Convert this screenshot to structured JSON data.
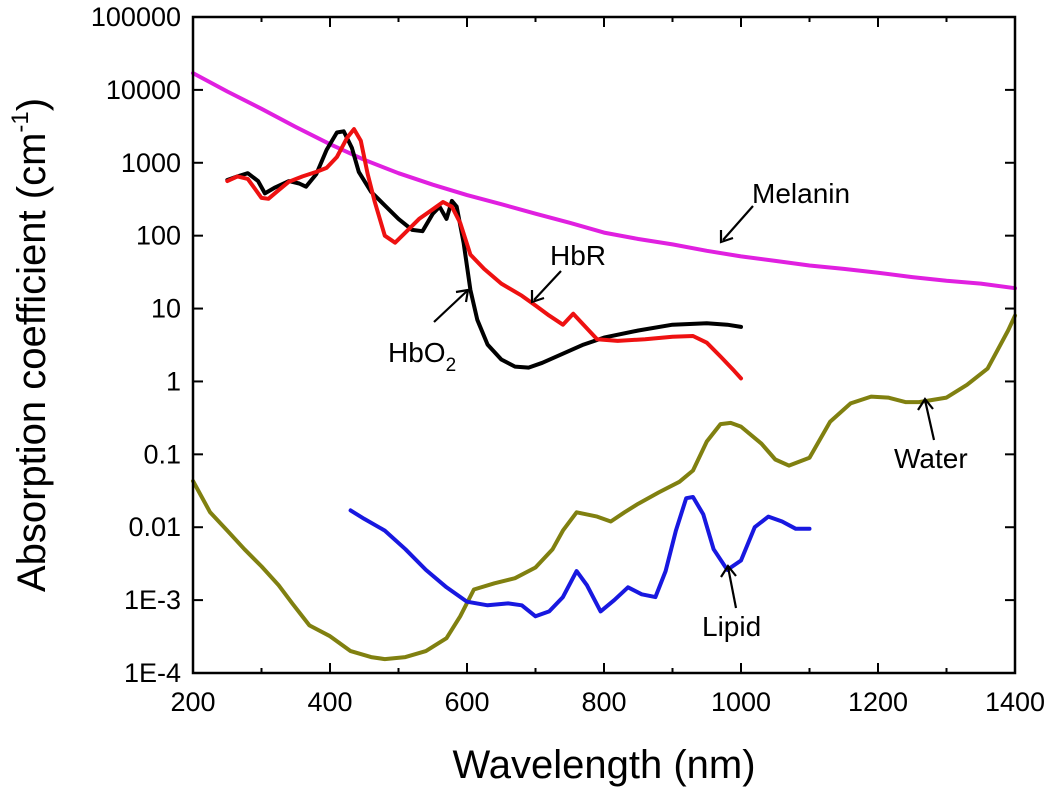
{
  "chart_data": {
    "type": "line",
    "xlabel": "Wavelength (nm)",
    "ylabel_main": "Absorption coefficient (cm",
    "ylabel_sup": "-1",
    "ylabel_close": ")",
    "xlim": [
      200,
      1400
    ],
    "ylim": [
      0.0001,
      100000
    ],
    "yscale": "log",
    "x_ticks": [
      200,
      400,
      600,
      800,
      1000,
      1200,
      1400
    ],
    "x_tick_labels": [
      "200",
      "400",
      "600",
      "800",
      "1000",
      "1200",
      "1400"
    ],
    "y_ticks": [
      0.0001,
      0.001,
      0.01,
      0.1,
      1,
      10,
      100,
      1000,
      10000,
      100000
    ],
    "y_tick_labels": [
      "1E-4",
      "1E-3",
      "0.01",
      "0.1",
      "1",
      "10",
      "100",
      "1000",
      "10000",
      "100000"
    ],
    "grid": false,
    "series": [
      {
        "key": "melanin",
        "color": "#e020e0",
        "points": [
          [
            200,
            17000
          ],
          [
            250,
            9500
          ],
          [
            300,
            5500
          ],
          [
            350,
            3100
          ],
          [
            400,
            1800
          ],
          [
            450,
            1100
          ],
          [
            500,
            720
          ],
          [
            550,
            500
          ],
          [
            600,
            360
          ],
          [
            650,
            270
          ],
          [
            700,
            200
          ],
          [
            750,
            150
          ],
          [
            800,
            110
          ],
          [
            850,
            90
          ],
          [
            900,
            76
          ],
          [
            950,
            62
          ],
          [
            1000,
            52
          ],
          [
            1050,
            45
          ],
          [
            1100,
            39
          ],
          [
            1150,
            35
          ],
          [
            1200,
            31
          ],
          [
            1250,
            27
          ],
          [
            1300,
            24
          ],
          [
            1350,
            22
          ],
          [
            1400,
            19
          ]
        ]
      },
      {
        "key": "hbo2",
        "color": "#000000",
        "points": [
          [
            250,
            580
          ],
          [
            265,
            650
          ],
          [
            280,
            720
          ],
          [
            295,
            560
          ],
          [
            305,
            380
          ],
          [
            320,
            460
          ],
          [
            340,
            560
          ],
          [
            355,
            520
          ],
          [
            365,
            470
          ],
          [
            380,
            700
          ],
          [
            395,
            1500
          ],
          [
            410,
            2600
          ],
          [
            420,
            2700
          ],
          [
            432,
            1600
          ],
          [
            442,
            750
          ],
          [
            460,
            400
          ],
          [
            480,
            260
          ],
          [
            500,
            170
          ],
          [
            520,
            120
          ],
          [
            535,
            115
          ],
          [
            550,
            200
          ],
          [
            560,
            250
          ],
          [
            570,
            170
          ],
          [
            578,
            300
          ],
          [
            585,
            250
          ],
          [
            595,
            80
          ],
          [
            605,
            18
          ],
          [
            615,
            7
          ],
          [
            630,
            3.2
          ],
          [
            650,
            2
          ],
          [
            670,
            1.6
          ],
          [
            690,
            1.55
          ],
          [
            710,
            1.8
          ],
          [
            740,
            2.4
          ],
          [
            770,
            3.2
          ],
          [
            800,
            4
          ],
          [
            850,
            5
          ],
          [
            900,
            6
          ],
          [
            950,
            6.3
          ],
          [
            980,
            6
          ],
          [
            1000,
            5.6
          ]
        ]
      },
      {
        "key": "hbr",
        "color": "#ee1111",
        "points": [
          [
            250,
            560
          ],
          [
            265,
            650
          ],
          [
            280,
            600
          ],
          [
            300,
            330
          ],
          [
            310,
            320
          ],
          [
            325,
            420
          ],
          [
            340,
            550
          ],
          [
            360,
            650
          ],
          [
            380,
            750
          ],
          [
            395,
            850
          ],
          [
            410,
            1200
          ],
          [
            425,
            2200
          ],
          [
            435,
            2900
          ],
          [
            445,
            2000
          ],
          [
            455,
            700
          ],
          [
            465,
            300
          ],
          [
            480,
            100
          ],
          [
            495,
            80
          ],
          [
            510,
            110
          ],
          [
            530,
            170
          ],
          [
            550,
            230
          ],
          [
            565,
            290
          ],
          [
            578,
            250
          ],
          [
            590,
            150
          ],
          [
            605,
            55
          ],
          [
            625,
            35
          ],
          [
            650,
            22
          ],
          [
            680,
            15
          ],
          [
            700,
            11
          ],
          [
            720,
            8
          ],
          [
            740,
            6
          ],
          [
            755,
            8.5
          ],
          [
            770,
            6
          ],
          [
            790,
            3.8
          ],
          [
            820,
            3.6
          ],
          [
            860,
            3.8
          ],
          [
            900,
            4.1
          ],
          [
            930,
            4.2
          ],
          [
            950,
            3.4
          ],
          [
            970,
            2.2
          ],
          [
            990,
            1.4
          ],
          [
            1000,
            1.1
          ]
        ]
      },
      {
        "key": "water",
        "color": "#808010",
        "points": [
          [
            200,
            0.043
          ],
          [
            225,
            0.016
          ],
          [
            250,
            0.009
          ],
          [
            275,
            0.005
          ],
          [
            300,
            0.0029
          ],
          [
            325,
            0.0016
          ],
          [
            345,
            0.0009
          ],
          [
            370,
            0.00045
          ],
          [
            400,
            0.00032
          ],
          [
            430,
            0.0002
          ],
          [
            460,
            0.000165
          ],
          [
            480,
            0.000155
          ],
          [
            510,
            0.000165
          ],
          [
            540,
            0.0002
          ],
          [
            570,
            0.0003
          ],
          [
            590,
            0.0006
          ],
          [
            610,
            0.0014
          ],
          [
            640,
            0.0017
          ],
          [
            670,
            0.002
          ],
          [
            700,
            0.0028
          ],
          [
            725,
            0.005
          ],
          [
            740,
            0.009
          ],
          [
            760,
            0.016
          ],
          [
            790,
            0.014
          ],
          [
            810,
            0.012
          ],
          [
            830,
            0.016
          ],
          [
            850,
            0.021
          ],
          [
            880,
            0.03
          ],
          [
            910,
            0.042
          ],
          [
            930,
            0.06
          ],
          [
            950,
            0.15
          ],
          [
            970,
            0.26
          ],
          [
            985,
            0.27
          ],
          [
            1000,
            0.24
          ],
          [
            1030,
            0.14
          ],
          [
            1050,
            0.085
          ],
          [
            1070,
            0.07
          ],
          [
            1100,
            0.09
          ],
          [
            1130,
            0.28
          ],
          [
            1160,
            0.5
          ],
          [
            1190,
            0.62
          ],
          [
            1215,
            0.6
          ],
          [
            1240,
            0.52
          ],
          [
            1260,
            0.52
          ],
          [
            1300,
            0.6
          ],
          [
            1330,
            0.9
          ],
          [
            1360,
            1.5
          ],
          [
            1390,
            5
          ],
          [
            1400,
            8
          ]
        ]
      },
      {
        "key": "lipid",
        "color": "#1818e0",
        "points": [
          [
            430,
            0.017
          ],
          [
            450,
            0.013
          ],
          [
            480,
            0.009
          ],
          [
            510,
            0.005
          ],
          [
            540,
            0.0026
          ],
          [
            570,
            0.0015
          ],
          [
            600,
            0.00095
          ],
          [
            630,
            0.00085
          ],
          [
            660,
            0.0009
          ],
          [
            680,
            0.00085
          ],
          [
            700,
            0.0006
          ],
          [
            720,
            0.0007
          ],
          [
            740,
            0.0011
          ],
          [
            760,
            0.0025
          ],
          [
            775,
            0.0016
          ],
          [
            795,
            0.0007
          ],
          [
            815,
            0.001
          ],
          [
            835,
            0.0015
          ],
          [
            855,
            0.0012
          ],
          [
            875,
            0.0011
          ],
          [
            890,
            0.0025
          ],
          [
            905,
            0.009
          ],
          [
            920,
            0.025
          ],
          [
            930,
            0.026
          ],
          [
            945,
            0.015
          ],
          [
            960,
            0.005
          ],
          [
            980,
            0.0026
          ],
          [
            1000,
            0.0035
          ],
          [
            1020,
            0.01
          ],
          [
            1040,
            0.014
          ],
          [
            1060,
            0.012
          ],
          [
            1080,
            0.0095
          ],
          [
            1100,
            0.0095
          ]
        ]
      }
    ],
    "annotations": [
      {
        "key": "melanin",
        "text": "Melanin",
        "sub": ""
      },
      {
        "key": "hbr",
        "text": "HbR",
        "sub": ""
      },
      {
        "key": "hbo2",
        "text": "HbO",
        "sub": "2"
      },
      {
        "key": "water",
        "text": "Water",
        "sub": ""
      },
      {
        "key": "lipid",
        "text": "Lipid",
        "sub": ""
      }
    ]
  }
}
